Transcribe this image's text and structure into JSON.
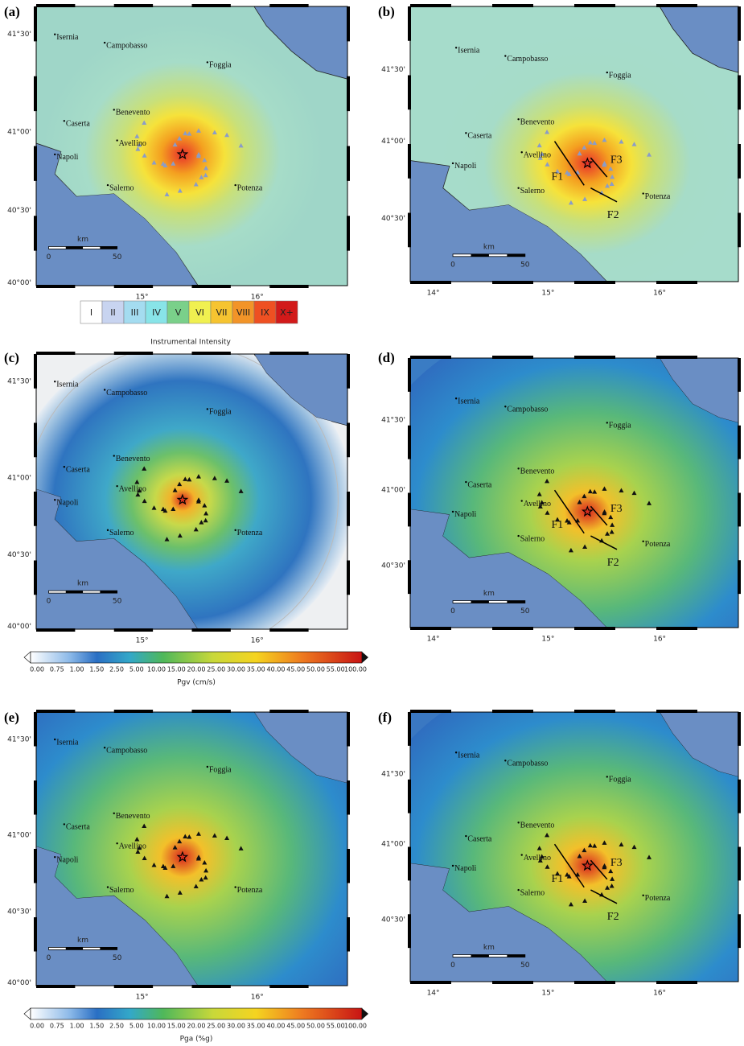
{
  "panels": [
    {
      "label": "(a)",
      "lat_labels": [
        "41°30'",
        "41°00'",
        "40°30'",
        "40°00'"
      ],
      "lon_labels": [
        "15°",
        "16°"
      ],
      "cities": [
        "Isernia",
        "Campobasso",
        "Foggia",
        "Benevento",
        "Caserta",
        "Avellino",
        "Napoli",
        "Salerno",
        "Potenza"
      ],
      "scale_unit": "km",
      "scale_labels": [
        "0",
        "50"
      ]
    },
    {
      "label": "(b)",
      "lat_labels": [
        "41°30'",
        "41°00'",
        "40°30'"
      ],
      "lon_labels": [
        "14°",
        "15°",
        "16°"
      ],
      "cities": [
        "Isernia",
        "Campobasso",
        "Foggia",
        "Benevento",
        "Caserta",
        "Avellino",
        "Napoli",
        "Salerno",
        "Potenza"
      ],
      "scale_unit": "km",
      "scale_labels": [
        "0",
        "50"
      ],
      "faults": [
        "F1",
        "F2",
        "F3"
      ]
    },
    {
      "label": "(c)",
      "lat_labels": [
        "41°30'",
        "41°00'",
        "40°30'",
        "40°00'"
      ],
      "lon_labels": [
        "15°",
        "16°"
      ],
      "cities": [
        "Isernia",
        "Campobasso",
        "Foggia",
        "Benevento",
        "Caserta",
        "Avellino",
        "Napoli",
        "Salerno",
        "Potenza"
      ],
      "scale_unit": "km",
      "scale_labels": [
        "0",
        "50"
      ]
    },
    {
      "label": "(d)",
      "lat_labels": [
        "41°30'",
        "41°00'",
        "40°30'"
      ],
      "lon_labels": [
        "14°",
        "15°",
        "16°"
      ],
      "cities": [
        "Isernia",
        "Campobasso",
        "Foggia",
        "Benevento",
        "Caserta",
        "Avellino",
        "Napoli",
        "Salerno",
        "Potenza"
      ],
      "scale_unit": "km",
      "scale_labels": [
        "0",
        "50"
      ],
      "faults": [
        "F1",
        "F2",
        "F3"
      ]
    },
    {
      "label": "(e)",
      "lat_labels": [
        "41°30'",
        "41°00'",
        "40°30'",
        "40°00'"
      ],
      "lon_labels": [
        "15°",
        "16°"
      ],
      "cities": [
        "Isernia",
        "Campobasso",
        "Foggia",
        "Benevento",
        "Caserta",
        "Avellino",
        "Napoli",
        "Salerno",
        "Potenza"
      ],
      "scale_unit": "km",
      "scale_labels": [
        "0",
        "50"
      ]
    },
    {
      "label": "(f)",
      "lat_labels": [
        "41°30'",
        "41°00'",
        "40°30'"
      ],
      "lon_labels": [
        "14°",
        "15°",
        "16°"
      ],
      "cities": [
        "Isernia",
        "Campobasso",
        "Foggia",
        "Benevento",
        "Caserta",
        "Avellino",
        "Napoli",
        "Salerno",
        "Potenza"
      ],
      "scale_unit": "km",
      "scale_labels": [
        "0",
        "50"
      ],
      "faults": [
        "F1",
        "F2",
        "F3"
      ]
    }
  ],
  "legends": [
    {
      "title": "Instrumental Intensity",
      "labels": [
        "I",
        "II",
        "III",
        "IV",
        "V",
        "VI",
        "VII",
        "VIII",
        "IX",
        "X+"
      ]
    },
    {
      "title": "Pgv (cm/s)",
      "labels": [
        "0.00",
        "0.75",
        "1.00",
        "1.50",
        "2.50",
        "5.00",
        "10.00",
        "15.00",
        "20.00",
        "25.00",
        "30.00",
        "35.00",
        "40.00",
        "45.00",
        "50.00",
        "55.00",
        "100.00"
      ]
    },
    {
      "title": "Pga (%g)",
      "labels": [
        "0.00",
        "0.75",
        "1.00",
        "1.50",
        "2.50",
        "5.00",
        "10.00",
        "15.00",
        "20.00",
        "25.00",
        "30.00",
        "35.00",
        "40.00",
        "45.00",
        "50.00",
        "55.00",
        "100.00"
      ]
    }
  ]
}
